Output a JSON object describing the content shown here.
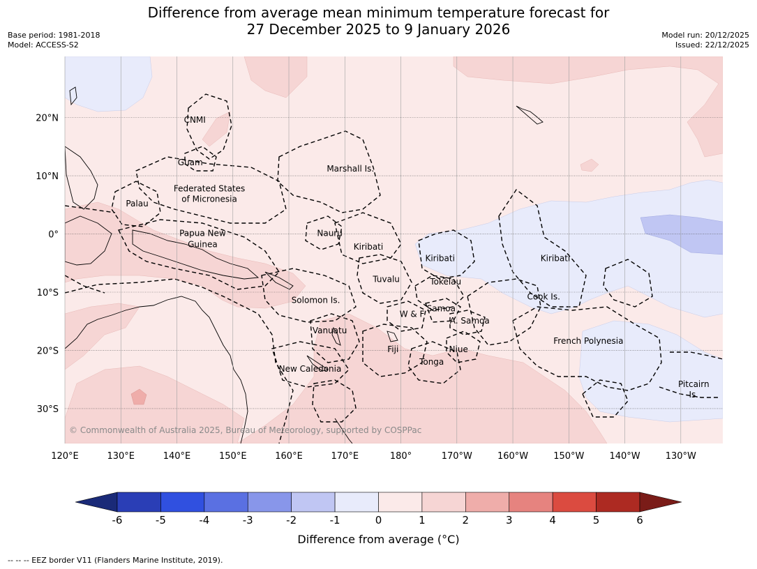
{
  "title": {
    "line1": "Difference from average mean minimum temperature forecast for",
    "line2": "27 December 2025 to 9 January 2026"
  },
  "meta_left": {
    "base_period": "Base period: 1981-2018",
    "model": "Model: ACCESS-S2"
  },
  "meta_right": {
    "model_run": "Model run: 20/12/2025",
    "issued": "Issued: 22/12/2025"
  },
  "map": {
    "lon_range": [
      120,
      237.5
    ],
    "lat_range": [
      -36,
      30.5
    ],
    "lon_ticks": [
      {
        "lon": 120,
        "label": "120°E"
      },
      {
        "lon": 130,
        "label": "130°E"
      },
      {
        "lon": 140,
        "label": "140°E"
      },
      {
        "lon": 150,
        "label": "150°E"
      },
      {
        "lon": 160,
        "label": "160°E"
      },
      {
        "lon": 170,
        "label": "170°E"
      },
      {
        "lon": 180,
        "label": "180°"
      },
      {
        "lon": 190,
        "label": "170°W"
      },
      {
        "lon": 200,
        "label": "160°W"
      },
      {
        "lon": 210,
        "label": "150°W"
      },
      {
        "lon": 220,
        "label": "140°W"
      },
      {
        "lon": 230,
        "label": "130°W"
      }
    ],
    "lat_ticks": [
      {
        "lat": 20,
        "label": "20°N"
      },
      {
        "lat": 10,
        "label": "10°N"
      },
      {
        "lat": 0,
        "label": "0°"
      },
      {
        "lat": -10,
        "label": "10°S"
      },
      {
        "lat": -20,
        "label": "20°S"
      },
      {
        "lat": -30,
        "label": "30°S"
      }
    ],
    "base_color": "#fbeae9",
    "regions": [
      {
        "name": "Pacific Islands",
        "lon": 143.2,
        "lat": 19.6,
        "text": "CNMI"
      },
      {
        "name": "Pacific Islands",
        "lon": 142.4,
        "lat": 12.3,
        "text": "Guam"
      },
      {
        "name": "Pacific Islands",
        "lon": 171.0,
        "lat": 11.2,
        "text": "Marshall Is."
      },
      {
        "name": "Pacific Islands",
        "lon": 145.8,
        "lat": 7.8,
        "text": "Federated States"
      },
      {
        "name": "Pacific Islands",
        "lon": 145.8,
        "lat": 6.0,
        "text": "of Micronesia"
      },
      {
        "name": "Pacific Islands",
        "lon": 132.9,
        "lat": 5.2,
        "text": "Palau"
      },
      {
        "name": "Pacific Islands",
        "lon": 167.3,
        "lat": 0.1,
        "text": "Nauru"
      },
      {
        "name": "Pacific Islands",
        "lon": 144.6,
        "lat": 0.1,
        "text": "Papua New"
      },
      {
        "name": "Pacific Islands",
        "lon": 144.6,
        "lat": -1.8,
        "text": "Guinea"
      },
      {
        "name": "Pacific Islands",
        "lon": 174.2,
        "lat": -2.2,
        "text": "Kiribati"
      },
      {
        "name": "Pacific Islands",
        "lon": 187.0,
        "lat": -4.2,
        "text": "Kiribati"
      },
      {
        "name": "Pacific Islands",
        "lon": 207.6,
        "lat": -4.2,
        "text": "Kiribati"
      },
      {
        "name": "Pacific Islands",
        "lon": 177.4,
        "lat": -7.8,
        "text": "Tuvalu"
      },
      {
        "name": "Pacific Islands",
        "lon": 188.0,
        "lat": -8.2,
        "text": "Tokelau"
      },
      {
        "name": "Pacific Islands",
        "lon": 205.5,
        "lat": -10.8,
        "text": "Cook Is."
      },
      {
        "name": "Pacific Islands",
        "lon": 164.8,
        "lat": -11.4,
        "text": "Solomon Is."
      },
      {
        "name": "Pacific Islands",
        "lon": 187.2,
        "lat": -12.8,
        "text": "Samoa"
      },
      {
        "name": "Pacific Islands",
        "lon": 182.0,
        "lat": -13.8,
        "text": "W & F"
      },
      {
        "name": "Pacific Islands",
        "lon": 192.3,
        "lat": -14.9,
        "text": "A. Samoa"
      },
      {
        "name": "Pacific Islands",
        "lon": 167.3,
        "lat": -16.6,
        "text": "Vanuatu"
      },
      {
        "name": "Pacific Islands",
        "lon": 213.5,
        "lat": -18.4,
        "text": "French Polynesia"
      },
      {
        "name": "Pacific Islands",
        "lon": 178.6,
        "lat": -19.8,
        "text": "Fiji"
      },
      {
        "name": "Pacific Islands",
        "lon": 190.3,
        "lat": -19.8,
        "text": "Niue"
      },
      {
        "name": "Pacific Islands",
        "lon": 185.5,
        "lat": -22.0,
        "text": "Tonga"
      },
      {
        "name": "Pacific Islands",
        "lon": 163.8,
        "lat": -23.2,
        "text": "New Caledonia"
      },
      {
        "name": "Pacific Islands",
        "lon": 232.3,
        "lat": -25.8,
        "text": "Pitcairn"
      },
      {
        "name": "Pacific Islands",
        "lon": 232.3,
        "lat": -27.6,
        "text": "Is."
      }
    ],
    "copyright": "© Commonwealth of Australia 2025, Bureau of Meteorology, supported by COSPPac"
  },
  "colorbar": {
    "min_color": "#1a2a78",
    "max_color": "#7a1c18",
    "colors": [
      "#2a3eb6",
      "#3050e0",
      "#5a70e2",
      "#8896ea",
      "#c0c6f3",
      "#e8ebfb",
      "#fbeae9",
      "#f6d5d4",
      "#efadaa",
      "#e6837f",
      "#db4b40",
      "#ad2a22"
    ],
    "ticks": [
      "-6",
      "-5",
      "-4",
      "-3",
      "-2",
      "-1",
      "0",
      "1",
      "2",
      "3",
      "4",
      "5",
      "6"
    ],
    "label": "Difference from average (°C)"
  },
  "footer": "--  --  -- EEZ border V11 (Flanders Marine Institute, 2019)."
}
